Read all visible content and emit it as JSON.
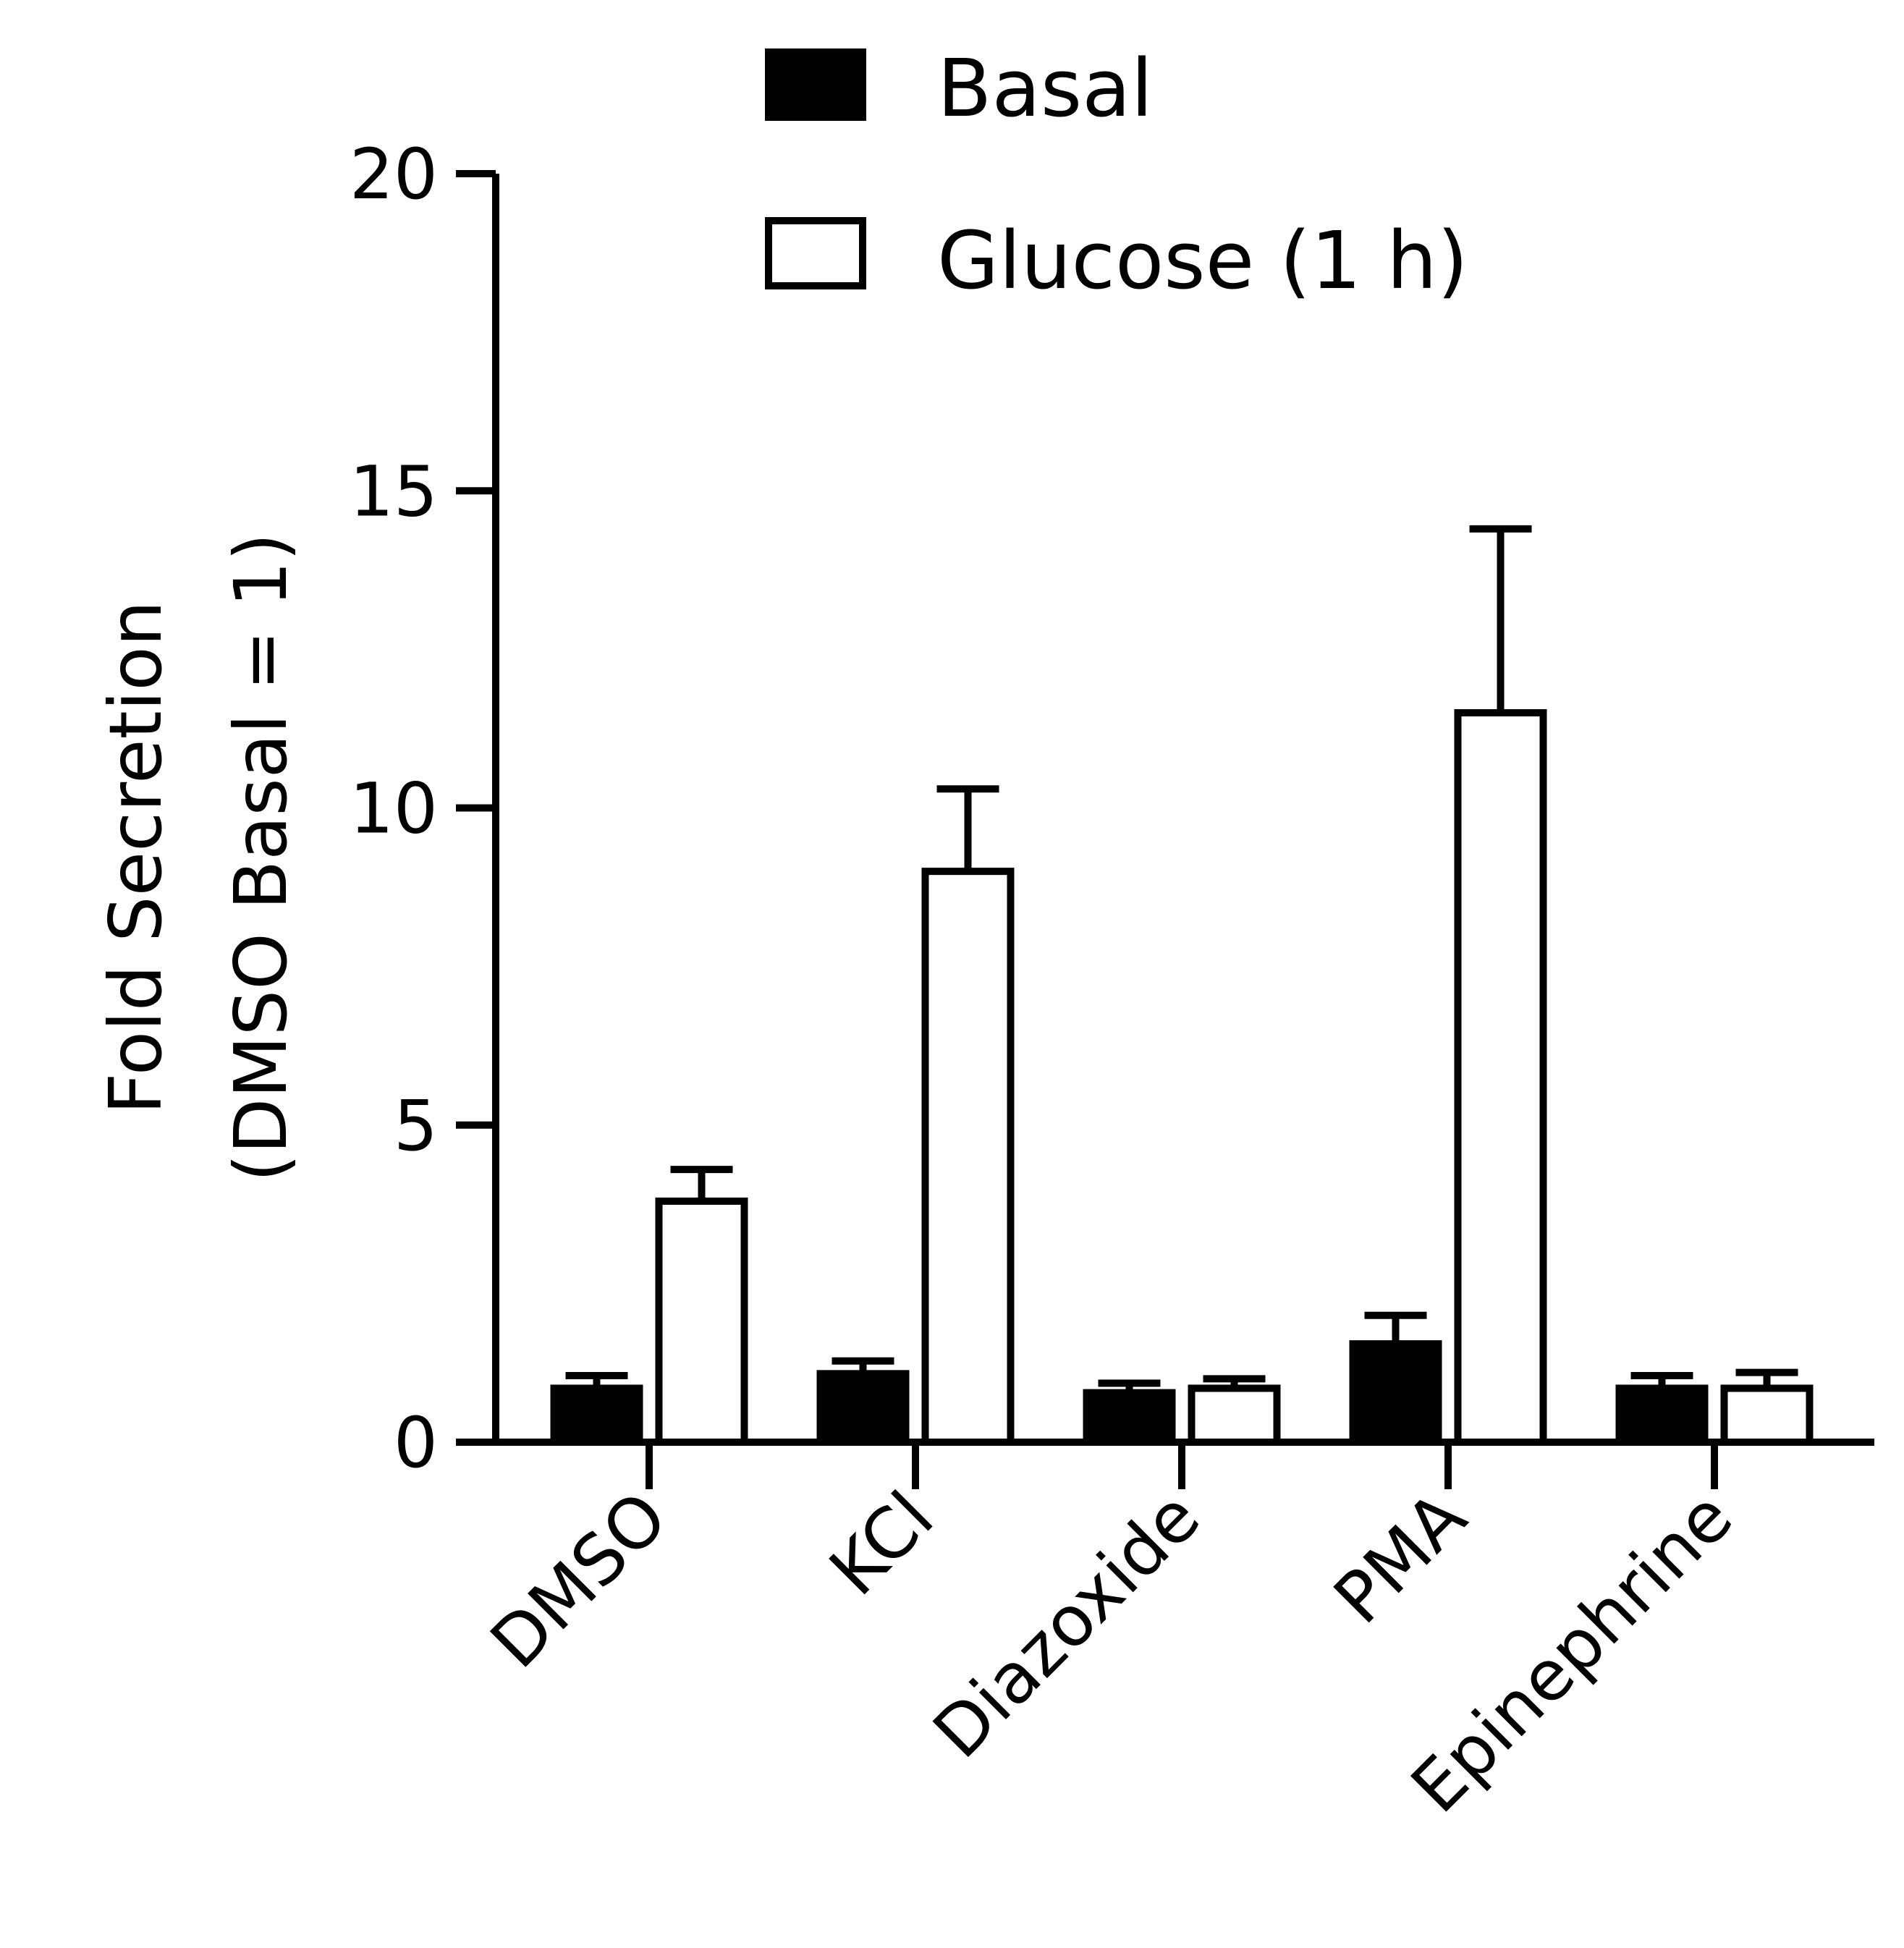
{
  "chart_data": {
    "type": "bar",
    "title": "",
    "xlabel": "",
    "ylabel_line1": "Fold Secretion",
    "ylabel_line2": "(DMSO Basal = 1)",
    "ylim": [
      0,
      20
    ],
    "yticks": [
      {
        "value": 0,
        "label": "0"
      },
      {
        "value": 5,
        "label": "5"
      },
      {
        "value": 10,
        "label": "10"
      },
      {
        "value": 15,
        "label": "15"
      },
      {
        "value": 20,
        "label": "20"
      }
    ],
    "categories": [
      "DMSO",
      "KCl",
      "Diazoxide",
      "PMA",
      "Epinephrine"
    ],
    "series": [
      {
        "name": "Basal",
        "fill": "#000000",
        "values": [
          0.85,
          1.08,
          0.78,
          1.55,
          0.85
        ],
        "errors": [
          0.2,
          0.2,
          0.15,
          0.45,
          0.2
        ]
      },
      {
        "name": "Glucose (1 h)",
        "fill": "#ffffff",
        "values": [
          3.8,
          9.0,
          0.85,
          11.5,
          0.85
        ],
        "errors": [
          0.5,
          1.3,
          0.15,
          2.9,
          0.25
        ]
      }
    ],
    "legend_position": "top",
    "grid": false
  }
}
